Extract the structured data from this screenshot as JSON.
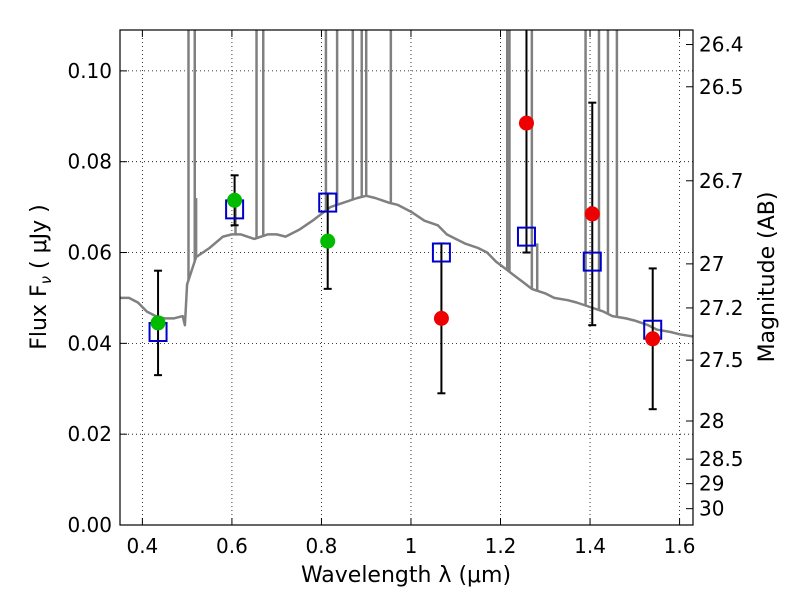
{
  "chart_data": {
    "type": "scatter",
    "title": "",
    "xlabel": "Wavelength  λ (μm)",
    "ylabel": "Flux  F",
    "ylabel_sub": "ν",
    "ylabel_unit": " ( μJy )",
    "ylabel_right": "Magnitude (AB)",
    "xlim": [
      0.35,
      1.63
    ],
    "ylim": [
      0.0,
      0.109
    ],
    "grid": true,
    "legend": "none",
    "x_ticks": [
      0.4,
      0.6,
      0.8,
      1.0,
      1.2,
      1.4,
      1.6
    ],
    "x_tick_labels": [
      "0.4",
      "0.6",
      "0.8",
      "1",
      "1.2",
      "1.4",
      "1.6"
    ],
    "y_ticks": [
      0.0,
      0.02,
      0.04,
      0.06,
      0.08,
      0.1
    ],
    "y_tick_labels": [
      "0.00",
      "0.02",
      "0.04",
      "0.06",
      "0.08",
      "0.10"
    ],
    "right_ticks": [
      {
        "flux": 0.1058,
        "label": "26.4"
      },
      {
        "flux": 0.0965,
        "label": "26.5"
      },
      {
        "flux": 0.0758,
        "label": "26.7"
      },
      {
        "flux": 0.0575,
        "label": "27"
      },
      {
        "flux": 0.0478,
        "label": "27.2"
      },
      {
        "flux": 0.0363,
        "label": "27.5"
      },
      {
        "flux": 0.0229,
        "label": "28"
      },
      {
        "flux": 0.0145,
        "label": "28.5"
      },
      {
        "flux": 0.0091,
        "label": "29"
      },
      {
        "flux": 0.0036,
        "label": "30"
      }
    ],
    "colors": {
      "model": "#808080",
      "model_photometry": "#0000cc",
      "optical": "#00bb00",
      "nir": "#ee0000",
      "errorbar": "#000000"
    },
    "series": [
      {
        "type": "line",
        "role": "model_spectrum",
        "x": [
          0.35,
          0.37,
          0.39,
          0.41,
          0.43,
          0.45,
          0.47,
          0.49,
          0.495,
          0.5,
          0.52,
          0.55,
          0.58,
          0.6,
          0.62,
          0.65,
          0.68,
          0.7,
          0.72,
          0.75,
          0.78,
          0.8,
          0.82,
          0.85,
          0.88,
          0.9,
          0.92,
          0.95,
          0.97,
          1.0,
          1.03,
          1.06,
          1.08,
          1.1,
          1.12,
          1.15,
          1.17,
          1.19,
          1.21,
          1.23,
          1.25,
          1.27,
          1.3,
          1.32,
          1.35,
          1.37,
          1.4,
          1.43,
          1.45,
          1.48,
          1.5,
          1.53,
          1.55,
          1.58,
          1.6,
          1.63
        ],
        "y": [
          0.05,
          0.05,
          0.049,
          0.047,
          0.046,
          0.0455,
          0.0455,
          0.046,
          0.044,
          0.053,
          0.059,
          0.061,
          0.0635,
          0.064,
          0.064,
          0.063,
          0.064,
          0.064,
          0.0635,
          0.065,
          0.067,
          0.0685,
          0.07,
          0.071,
          0.072,
          0.0725,
          0.072,
          0.071,
          0.0705,
          0.069,
          0.067,
          0.066,
          0.064,
          0.063,
          0.062,
          0.061,
          0.06,
          0.058,
          0.0565,
          0.055,
          0.0535,
          0.052,
          0.051,
          0.05,
          0.0495,
          0.049,
          0.048,
          0.047,
          0.046,
          0.0455,
          0.045,
          0.044,
          0.043,
          0.0425,
          0.042,
          0.0415
        ]
      },
      {
        "type": "emission_lines",
        "role": "model_spectrum_lines",
        "x": [
          0.503,
          0.517,
          0.52,
          0.608,
          0.655,
          0.67,
          0.81,
          0.835,
          0.87,
          0.89,
          0.9,
          0.955,
          1.215,
          1.22,
          1.27,
          1.282,
          1.39,
          1.42,
          1.44,
          1.46
        ],
        "peak": [
          0.109,
          0.109,
          0.072,
          0.072,
          0.109,
          0.109,
          0.109,
          0.109,
          0.109,
          0.109,
          0.109,
          0.109,
          0.109,
          0.109,
          0.109,
          0.062,
          0.109,
          0.109,
          0.109,
          0.109
        ]
      },
      {
        "type": "scatter",
        "role": "model_photometry",
        "marker": "open-square",
        "x": [
          0.435,
          0.606,
          0.814,
          1.068,
          1.258,
          1.405,
          1.54
        ],
        "y": [
          0.0425,
          0.0695,
          0.071,
          0.06,
          0.0635,
          0.058,
          0.043
        ]
      },
      {
        "type": "scatter",
        "role": "optical_observed",
        "marker": "filled-circle",
        "x": [
          0.435,
          0.606,
          0.814
        ],
        "y": [
          0.0445,
          0.0715,
          0.0625
        ],
        "err_low": [
          0.0115,
          0.0055,
          0.0105
        ],
        "err_high": [
          0.0115,
          0.0055,
          0.0105
        ]
      },
      {
        "type": "scatter",
        "role": "nir_observed",
        "marker": "filled-circle",
        "x": [
          1.068,
          1.258,
          1.405,
          1.54
        ],
        "y": [
          0.0455,
          0.0885,
          0.0685,
          0.041
        ],
        "err_low": [
          0.0165,
          0.0285,
          0.0245,
          0.0155
        ],
        "err_high": [
          0.0165,
          0.0285,
          0.0245,
          0.0155
        ]
      }
    ]
  }
}
